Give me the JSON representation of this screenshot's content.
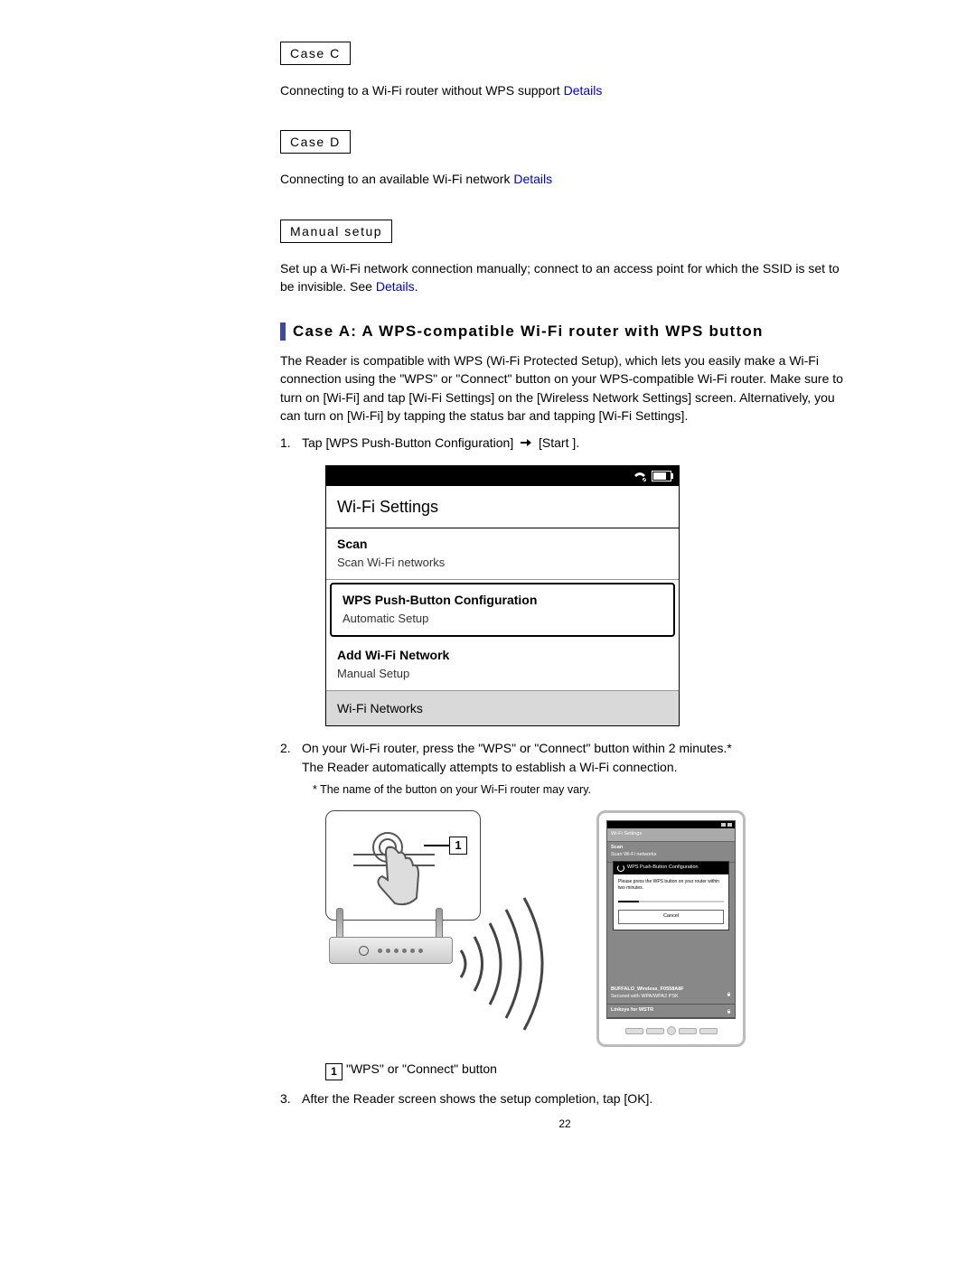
{
  "caseC": {
    "label": "Case C",
    "text": "Connecting to a Wi-Fi router without WPS support ",
    "link": "Details"
  },
  "caseD": {
    "label": "Case D",
    "text": "Connecting to an available Wi-Fi network ",
    "link": "Details"
  },
  "manual": {
    "label": "Manual setup",
    "text1": "Set up a Wi-Fi network connection manually; connect to an access point for which the SSID is set to be invisible. See ",
    "link": "Details",
    "text2": "."
  },
  "caseA": {
    "heading": "Case A: A WPS-compatible Wi-Fi router with WPS button",
    "intro": "The Reader is compatible with WPS (Wi-Fi Protected Setup), which lets you easily make a Wi-Fi connection using the \"WPS\" or \"Connect\" button on your WPS-compatible Wi-Fi router. Make sure to turn on [Wi-Fi] and tap [Wi-Fi Settings] on the [Wireless Network Settings] screen. Alternatively, you can turn on [Wi-Fi] by tapping the status bar and tapping [Wi-Fi Settings].",
    "step1a": "Tap [WPS Push-Button Configuration] ",
    "step1b": " [Start ].",
    "step2a": "On your Wi-Fi router, press the \"WPS\" or \"Connect\" button within 2 minutes.*",
    "step2b": "The Reader automatically attempts to establish a Wi-Fi connection.",
    "step2note": "* The name of the button on your Wi-Fi router may vary.",
    "step3": "After the Reader screen shows the setup completion, tap [OK]."
  },
  "screenshot1": {
    "title": "Wi-Fi Settings",
    "rows": [
      {
        "title": "Scan",
        "sub": "Scan Wi-Fi networks",
        "selected": false
      },
      {
        "title": "WPS Push-Button Configuration",
        "sub": "Automatic Setup",
        "selected": true
      },
      {
        "title": "Add Wi-Fi Network",
        "sub": "Manual Setup",
        "selected": false
      }
    ],
    "section": "Wi-Fi Networks"
  },
  "readerDialog": {
    "title": "Wi-Fi Settings",
    "scan": "Scan",
    "scanSub": "Scan Wi-Fi networks",
    "dlgTitle": "WPS Push-Button Configuration",
    "dlgBody": "Please press the WPS button on your router within two minutes.",
    "cancel": "Cancel",
    "net1": "BUFFALO_Wireless_F0558A8F",
    "net1sub": "Secured with WPA/WPA2 PSK",
    "net2": "Linksys for WSTR"
  },
  "legend1": "\"WPS\" or \"Connect\" button",
  "pageNumber": "22",
  "colors": {
    "accent": "#3a4a9c",
    "link": "#0000cc"
  }
}
